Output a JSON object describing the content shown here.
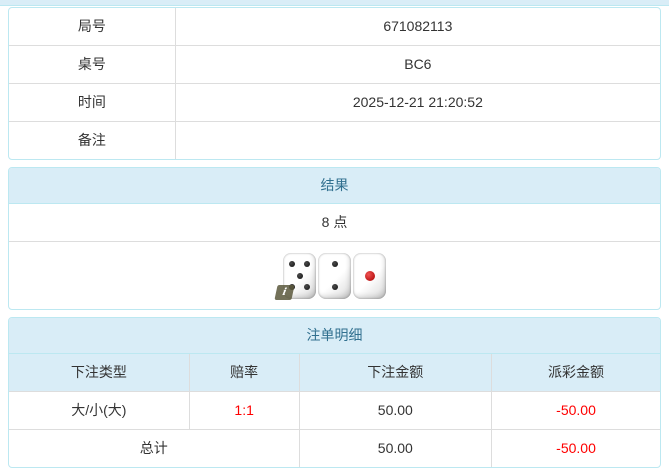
{
  "info_panel": {
    "rows": [
      {
        "label": "局号",
        "value": "671082113"
      },
      {
        "label": "桌号",
        "value": "BC6"
      },
      {
        "label": "时间",
        "value": "2025-12-21 21:20:52"
      },
      {
        "label": "备注",
        "value": ""
      }
    ]
  },
  "result_panel": {
    "title": "结果",
    "points": "8 点",
    "dice": [
      {
        "value": 5,
        "color": "black"
      },
      {
        "value": 2,
        "color": "black"
      },
      {
        "value": 1,
        "color": "red"
      }
    ],
    "info_badge": "i"
  },
  "bets_panel": {
    "title": "注单明细",
    "columns": [
      "下注类型",
      "赔率",
      "下注金额",
      "派彩金额"
    ],
    "rows": [
      {
        "bet_type": "大/小(大)",
        "odds": "1:1",
        "bet_amount": "50.00",
        "payout": "-50.00"
      }
    ],
    "total": {
      "label": "总计",
      "bet_amount": "50.00",
      "payout": "-50.00"
    }
  },
  "colors": {
    "panel_border": "#bce8f1",
    "heading_bg": "#d9edf7",
    "heading_text": "#31708f",
    "table_border": "#dddddd",
    "text": "#333333",
    "negative": "#ff0000"
  }
}
